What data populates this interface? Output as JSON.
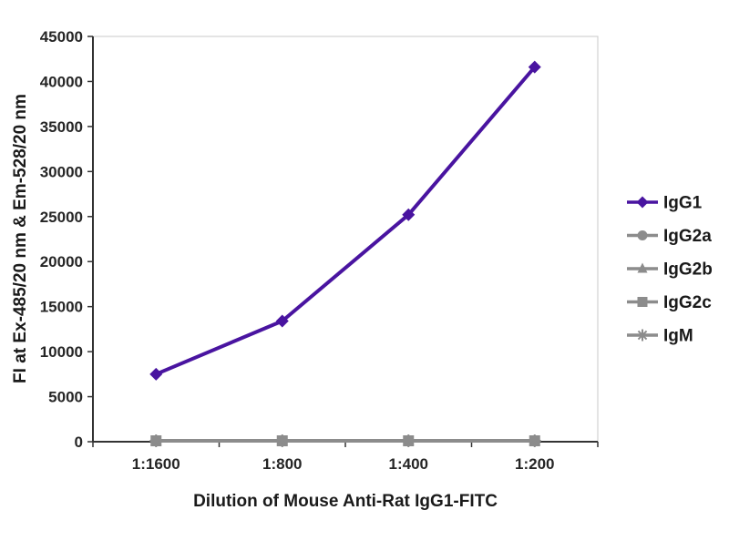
{
  "chart_data": {
    "type": "line",
    "title": "",
    "categories": [
      "1:1600",
      "1:800",
      "1:400",
      "1:200"
    ],
    "series": [
      {
        "name": "IgG1",
        "marker": "diamond",
        "color": "#4914a0",
        "values": [
          7500,
          13400,
          25200,
          41600
        ]
      },
      {
        "name": "IgG2a",
        "marker": "circle",
        "color": "#8c8c8c",
        "values": [
          100,
          100,
          100,
          100
        ]
      },
      {
        "name": "IgG2b",
        "marker": "triangle",
        "color": "#8c8c8c",
        "values": [
          100,
          100,
          100,
          100
        ]
      },
      {
        "name": "IgG2c",
        "marker": "square",
        "color": "#8c8c8c",
        "values": [
          100,
          100,
          100,
          100
        ]
      },
      {
        "name": "IgM",
        "marker": "star",
        "color": "#8c8c8c",
        "values": [
          100,
          100,
          100,
          100
        ]
      }
    ],
    "xlabel": "Dilution of Mouse Anti-Rat IgG1-FITC",
    "ylabel": "FI at Ex-485/20 nm & Em-528/20 nm",
    "ylim": [
      0,
      45000
    ],
    "ytick_step": 5000,
    "ytick_labels": [
      "0",
      "5000",
      "10000",
      "15000",
      "20000",
      "25000",
      "30000",
      "35000",
      "40000",
      "45000"
    ],
    "grid": false,
    "legend_position": "right",
    "colors": {
      "axis": "#333333",
      "tick_text": "#262626",
      "plot_border": "#c8c8c8",
      "background": "#ffffff"
    }
  }
}
